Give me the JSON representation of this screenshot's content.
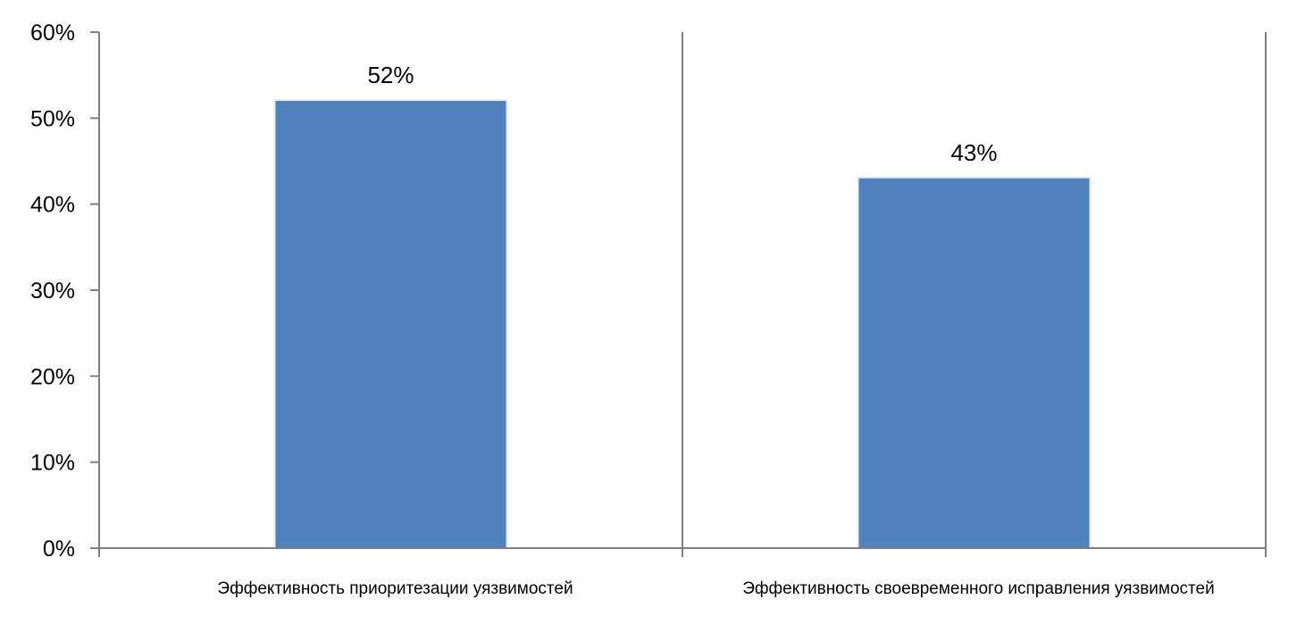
{
  "chart_data": {
    "type": "bar",
    "categories": [
      "Эффективность приоритезации уязвимостей",
      "Эффективность своевременного исправления уязвимостей"
    ],
    "values": [
      0.52,
      0.43
    ],
    "data_labels": [
      "52%",
      "43%"
    ],
    "ylim": [
      0,
      0.6
    ],
    "yticks": [
      0,
      0.1,
      0.2,
      0.3,
      0.4,
      0.5,
      0.6
    ],
    "ytick_labels": [
      "0%",
      "10%",
      "20%",
      "30%",
      "40%",
      "50%",
      "60%"
    ],
    "title": "",
    "xlabel": "",
    "ylabel": "",
    "grid": false,
    "legend": "none",
    "colors": {
      "bar": "#4F81BD",
      "axis": "#808080",
      "text": "#000000"
    }
  }
}
